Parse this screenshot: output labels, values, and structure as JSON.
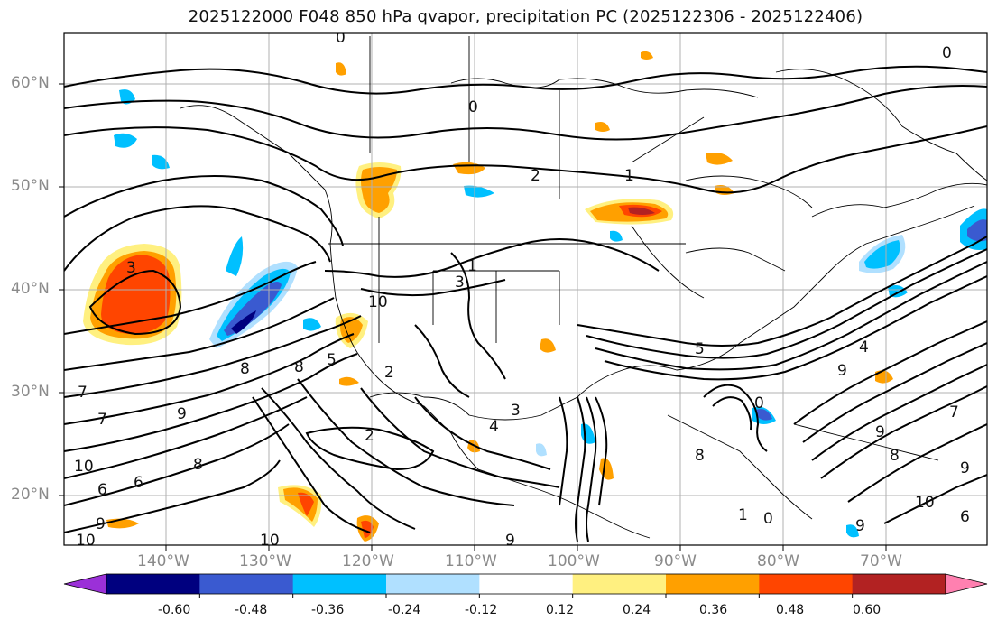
{
  "title": "2025122000 F048 850 hPa qvapor, precipitation PC (2025122306 - 2025122406)",
  "lat_labels": [
    "60°N",
    "50°N",
    "40°N",
    "30°N",
    "20°N"
  ],
  "lon_labels": [
    "140°W",
    "130°W",
    "120°W",
    "110°W",
    "100°W",
    "90°W",
    "80°W",
    "70°W"
  ],
  "colorbar": {
    "colors": [
      "#9b30d8",
      "#00007f",
      "#3a5ad0",
      "#00c0ff",
      "#b0e0ff",
      "#ffffff",
      "#fff080",
      "#ffa000",
      "#ff4500",
      "#b22222",
      "#ff80b0"
    ],
    "tick_labels": [
      "-0.60",
      "-0.48",
      "-0.36",
      "-0.24",
      "-0.12",
      "0.12",
      "0.24",
      "0.36",
      "0.48",
      "0.60"
    ]
  },
  "contour_labels": [
    "0",
    "0",
    "0",
    "2",
    "1",
    "3",
    "1",
    "3",
    "10",
    "2",
    "2",
    "4",
    "3",
    "8",
    "9",
    "7",
    "10",
    "6",
    "5",
    "9",
    "8",
    "10",
    "9",
    "10",
    "9",
    "8",
    "9",
    "10",
    "6",
    "7",
    "9",
    "1",
    "0",
    "4",
    "5",
    "0",
    "8",
    "9",
    "7",
    "8",
    "6"
  ],
  "colors": {
    "contour": "#000000",
    "coast": "#000000",
    "grid": "#b0b0b0"
  }
}
